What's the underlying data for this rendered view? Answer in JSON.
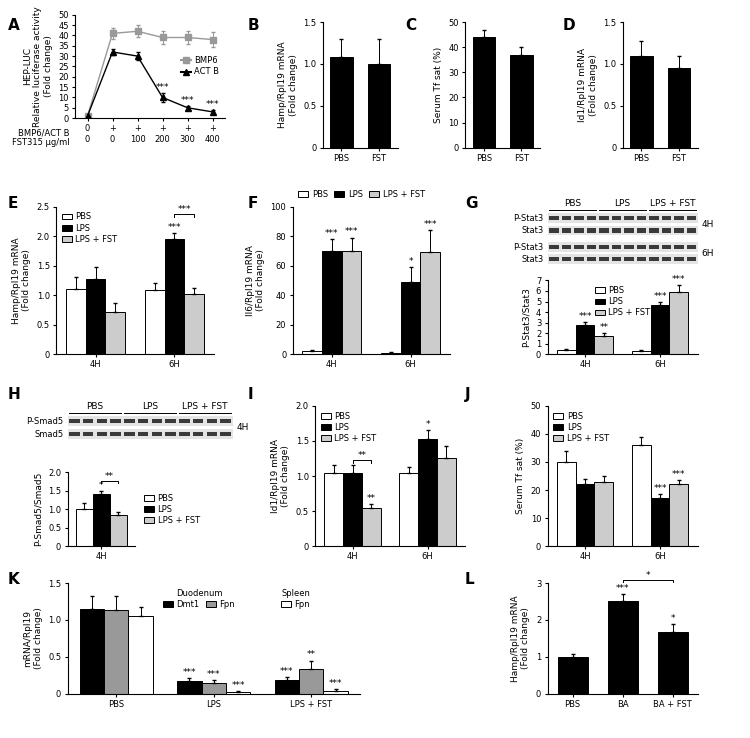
{
  "chart_data": [
    {
      "panel_label": "A",
      "type": "line",
      "categories": [
        "0\n0",
        "+\n0",
        "+\n100",
        "+\n200",
        "+\n300",
        "+\n400"
      ],
      "x_row_labels": [
        "BMP6/ACT B",
        "FST315 µg/ml"
      ],
      "y_label": "HEP-LUC\nRelative luciferase activity\n(Fold change)",
      "ylim": [
        0,
        50
      ],
      "yticks": [
        0,
        5,
        10,
        15,
        20,
        25,
        30,
        35,
        40,
        45,
        50
      ],
      "legend": "center right",
      "series": [
        {
          "name": "BMP6",
          "color": "#999999",
          "marker": "square",
          "line_style": "solid",
          "values": [
            1,
            41,
            42,
            39,
            39,
            38
          ],
          "errors": [
            0.3,
            2.5,
            3,
            3,
            3,
            3.5
          ]
        },
        {
          "name": "ACT B",
          "color": "#000000",
          "marker": "triangle",
          "line_style": "solid",
          "values": [
            1,
            32,
            30,
            10,
            5,
            3
          ],
          "errors": [
            0.3,
            1.5,
            2,
            2,
            1,
            0.8
          ],
          "stars": [
            null,
            null,
            null,
            "***",
            "***",
            "***"
          ]
        }
      ]
    },
    {
      "panel_label": "B",
      "type": "bar",
      "categories": [
        "PBS",
        "FST"
      ],
      "values": [
        1.08,
        1.0
      ],
      "errors": [
        0.22,
        0.3
      ],
      "color": "#000000",
      "y_label": "Hamp/Rpl19 mRNA\n(Fold change)",
      "ylim": [
        0,
        1.5
      ],
      "yticks": [
        0,
        0.5,
        {
          "value": 1,
          "label": "1.0"
        },
        1.5
      ]
    },
    {
      "panel_label": "C",
      "type": "bar",
      "categories": [
        "PBS",
        "FST"
      ],
      "values": [
        44,
        37
      ],
      "errors": [
        3,
        3
      ],
      "color": "#000000",
      "y_label": "Serum Tf sat (%)",
      "ylim": [
        0,
        50
      ],
      "yticks": [
        0,
        10,
        20,
        30,
        40,
        50
      ]
    },
    {
      "panel_label": "D",
      "type": "bar",
      "categories": [
        "PBS",
        "FST"
      ],
      "values": [
        1.1,
        0.95
      ],
      "errors": [
        0.17,
        0.15
      ],
      "color": "#000000",
      "y_label": "Id1/Rpl19 mRNA\n(Fold change)",
      "ylim": [
        0,
        1.5
      ],
      "yticks": [
        0,
        0.5,
        {
          "value": 1,
          "label": "1.0"
        },
        1.5
      ]
    },
    {
      "panel_label": "E",
      "type": "bar",
      "categories": [
        "4H",
        "6H"
      ],
      "y_label": "Hamp/Rpl19 mRNA\n(Fold change)",
      "ylim": [
        0,
        2.5
      ],
      "yticks": [
        0,
        0.5,
        {
          "value": 1,
          "label": "1.0"
        },
        1.5,
        {
          "value": 2,
          "label": "2.0"
        },
        2.5
      ],
      "legend": "upper left",
      "series": [
        {
          "name": "PBS",
          "color": "#ffffff",
          "values": [
            1.1,
            1.08
          ],
          "errors": [
            0.2,
            0.12
          ]
        },
        {
          "name": "LPS",
          "color": "#000000",
          "values": [
            1.28,
            1.95
          ],
          "errors": [
            0.2,
            0.1
          ],
          "stars": [
            null,
            "***"
          ]
        },
        {
          "name": "LPS + FST",
          "color": "#cccccc",
          "values": [
            0.72,
            1.02
          ],
          "errors": [
            0.15,
            0.1
          ]
        }
      ],
      "comparisons": [
        {
          "category": "6H",
          "from": "LPS",
          "to": "LPS + FST",
          "text": "***"
        }
      ]
    },
    {
      "panel_label": "F",
      "type": "bar",
      "categories": [
        "4H",
        "6H"
      ],
      "y_label": "Il6/Rpl19 mRNA\n(Fold change)",
      "ylim": [
        0,
        100
      ],
      "yticks": [
        0,
        20,
        40,
        60,
        80,
        100
      ],
      "legend": "above",
      "series": [
        {
          "name": "PBS",
          "color": "#ffffff",
          "values": [
            2,
            1
          ],
          "errors": [
            1,
            0.5
          ]
        },
        {
          "name": "LPS",
          "color": "#000000",
          "values": [
            70,
            49
          ],
          "errors": [
            8,
            10
          ],
          "stars": [
            "***",
            "*"
          ]
        },
        {
          "name": "LPS + FST",
          "color": "#cccccc",
          "values": [
            70,
            69
          ],
          "errors": [
            9,
            15
          ],
          "stars": [
            "***",
            "***"
          ]
        }
      ]
    },
    {
      "panel_label": "G",
      "type": "bar",
      "categories": [
        "4H",
        "6H"
      ],
      "y_label": "P-Stat3/Stat3",
      "ylim": [
        0,
        7
      ],
      "yticks": [
        0,
        1,
        2,
        3,
        4,
        5,
        6,
        7
      ],
      "legend": "upper center",
      "series": [
        {
          "name": "PBS",
          "color": "#ffffff",
          "values": [
            0.4,
            0.3
          ],
          "errors": [
            0.1,
            0.1
          ]
        },
        {
          "name": "LPS",
          "color": "#000000",
          "values": [
            2.8,
            4.7
          ],
          "errors": [
            0.3,
            0.3
          ],
          "stars": [
            "***",
            "***"
          ]
        },
        {
          "name": "LPS + FST",
          "color": "#cccccc",
          "values": [
            1.7,
            5.9
          ],
          "errors": [
            0.3,
            0.7
          ],
          "stars": [
            "**",
            "***"
          ]
        }
      ],
      "blot": {
        "lanes": [
          "PBS",
          "LPS",
          "LPS + FST"
        ],
        "lanes_per_group": 4,
        "blocks": [
          {
            "time": "4H",
            "rows": [
              "P-Stat3",
              "Stat3"
            ]
          },
          {
            "time": "6H",
            "rows": [
              "P-Stat3",
              "Stat3"
            ]
          }
        ]
      }
    },
    {
      "panel_label": "H",
      "type": "bar",
      "categories": [
        "4H"
      ],
      "y_label": "P-Smad5/Smad5",
      "ylim": [
        0,
        2
      ],
      "yticks": [
        0,
        0.5,
        {
          "value": 1,
          "label": "1.0"
        },
        1.5,
        {
          "value": 2,
          "label": "2.0"
        }
      ],
      "legend": "right",
      "series": [
        {
          "name": "PBS",
          "color": "#ffffff",
          "values": [
            1.0
          ],
          "errors": [
            0.18
          ]
        },
        {
          "name": "LPS",
          "color": "#000000",
          "values": [
            1.42
          ],
          "errors": [
            0.08
          ],
          "stars": [
            "*"
          ]
        },
        {
          "name": "LPS + FST",
          "color": "#cccccc",
          "values": [
            0.85
          ],
          "errors": [
            0.07
          ]
        }
      ],
      "comparisons": [
        {
          "category": "4H",
          "from": "LPS",
          "to": "LPS + FST",
          "text": "**"
        }
      ],
      "blot": {
        "lanes": [
          "PBS",
          "LPS",
          "LPS + FST"
        ],
        "lanes_per_group": 4,
        "blocks": [
          {
            "time": "4H",
            "rows": [
              "P-Smad5",
              "Smad5"
            ]
          }
        ]
      }
    },
    {
      "panel_label": "I",
      "type": "bar",
      "categories": [
        "4H",
        "6H"
      ],
      "y_label": "Id1/Rpl19 mRNA\n(Fold change)",
      "ylim": [
        0,
        2
      ],
      "yticks": [
        0,
        0.5,
        {
          "value": 1,
          "label": "1.0"
        },
        1.5,
        {
          "value": 2,
          "label": "2.0"
        }
      ],
      "legend": "upper left",
      "series": [
        {
          "name": "PBS",
          "color": "#ffffff",
          "values": [
            1.05,
            1.05
          ],
          "errors": [
            0.1,
            0.08
          ]
        },
        {
          "name": "LPS",
          "color": "#000000",
          "values": [
            1.05,
            1.53
          ],
          "errors": [
            0.1,
            0.12
          ],
          "stars": [
            null,
            "*"
          ]
        },
        {
          "name": "LPS + FST",
          "color": "#cccccc",
          "values": [
            0.55,
            1.25
          ],
          "errors": [
            0.05,
            0.18
          ],
          "stars": [
            "**",
            null
          ]
        }
      ],
      "comparisons": [
        {
          "category": "4H",
          "from": "LPS",
          "to": "LPS + FST",
          "text": "**"
        }
      ]
    },
    {
      "panel_label": "J",
      "type": "bar",
      "categories": [
        "4H",
        "6H"
      ],
      "y_label": "Serum Tf sat (%)",
      "ylim": [
        0,
        50
      ],
      "yticks": [
        0,
        10,
        20,
        30,
        40,
        50
      ],
      "legend": "upper left",
      "series": [
        {
          "name": "PBS",
          "color": "#ffffff",
          "values": [
            30,
            36
          ],
          "errors": [
            4,
            3
          ]
        },
        {
          "name": "LPS",
          "color": "#000000",
          "values": [
            22,
            17
          ],
          "errors": [
            2,
            1.5
          ],
          "stars": [
            null,
            "***"
          ]
        },
        {
          "name": "LPS + FST",
          "color": "#cccccc",
          "values": [
            23,
            22
          ],
          "errors": [
            2,
            1.5
          ],
          "stars": [
            null,
            "***"
          ]
        }
      ]
    },
    {
      "panel_label": "K",
      "type": "bar",
      "categories": [
        "PBS",
        "LPS",
        "LPS + FST"
      ],
      "y_label": "mRNA/Rpl19\n(Fold change)",
      "ylim": [
        0,
        1.5
      ],
      "yticks": [
        0,
        0.5,
        {
          "value": 1,
          "label": "1.0"
        },
        1.5
      ],
      "legend": "upper center",
      "series": [
        {
          "name": "Dmt1",
          "color": "#000000",
          "values": [
            1.15,
            0.17,
            0.18
          ],
          "errors": [
            0.18,
            0.04,
            0.04
          ],
          "stars": [
            null,
            "***",
            "***"
          ]
        },
        {
          "name": "Fpn",
          "color": "#999999",
          "values": [
            1.13,
            0.15,
            0.33
          ],
          "errors": [
            0.2,
            0.04,
            0.12
          ],
          "stars": [
            null,
            "***",
            "**"
          ]
        },
        {
          "name": "Fpn",
          "color": "#ffffff",
          "values": [
            1.05,
            0.03,
            0.04
          ],
          "errors": [
            0.12,
            0.01,
            0.02
          ],
          "stars": [
            null,
            "***",
            "***"
          ]
        }
      ],
      "legend_groups": [
        {
          "title": "Duodenum",
          "series": [
            0,
            1
          ]
        },
        {
          "title": "Spleen",
          "series": [
            2
          ]
        }
      ]
    },
    {
      "panel_label": "L",
      "type": "bar",
      "categories": [
        "PBS",
        "BA",
        "BA + FST"
      ],
      "values": [
        1.0,
        2.5,
        1.68
      ],
      "errors": [
        0.08,
        0.2,
        0.2
      ],
      "color": "#000000",
      "stars": [
        null,
        "***",
        "*"
      ],
      "y_label": "Hamp/Rpl19 mRNA\n(Fold change)",
      "ylim": [
        0,
        3
      ],
      "yticks": [
        0,
        1,
        2,
        3
      ],
      "comparisons": [
        {
          "from": "BA",
          "to": "BA + FST",
          "text": "*"
        }
      ]
    }
  ]
}
